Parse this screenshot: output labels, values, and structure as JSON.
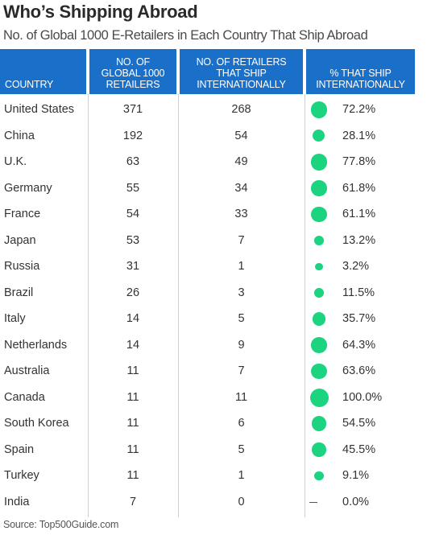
{
  "header": {
    "title": "Who’s Shipping Abroad",
    "subtitle": "No. of Global 1000 E-Retailers in Each Country That Ship Abroad"
  },
  "columns": {
    "country": "COUNTRY",
    "retailers": "NO. OF\nGLOBAL 1000\nRETAILERS",
    "ship": "NO. OF RETAILERS\nTHAT SHIP\nINTERNATIONALLY",
    "pct": "% THAT SHIP\nINTERNATIONALLY"
  },
  "colors": {
    "header_bg": "#1a6fc9",
    "dot": "#1cd47f"
  },
  "source": "Source: Top500Guide.com",
  "chart_data": {
    "type": "table",
    "title": "Who’s Shipping Abroad",
    "subtitle": "No. of Global 1000 E-Retailers in Each Country That Ship Abroad",
    "rows": [
      {
        "country": "United States",
        "retailers": "371",
        "ship": "268",
        "pct": "72.2%",
        "pct_value": 72.2
      },
      {
        "country": "China",
        "retailers": "192",
        "ship": "54",
        "pct": "28.1%",
        "pct_value": 28.1
      },
      {
        "country": "U.K.",
        "retailers": "63",
        "ship": "49",
        "pct": "77.8%",
        "pct_value": 77.8
      },
      {
        "country": "Germany",
        "retailers": "55",
        "ship": "34",
        "pct": "61.8%",
        "pct_value": 61.8
      },
      {
        "country": "France",
        "retailers": "54",
        "ship": "33",
        "pct": "61.1%",
        "pct_value": 61.1
      },
      {
        "country": "Japan",
        "retailers": "53",
        "ship": "7",
        "pct": "13.2%",
        "pct_value": 13.2
      },
      {
        "country": "Russia",
        "retailers": "31",
        "ship": "1",
        "pct": "3.2%",
        "pct_value": 3.2
      },
      {
        "country": "Brazil",
        "retailers": "26",
        "ship": "3",
        "pct": "11.5%",
        "pct_value": 11.5
      },
      {
        "country": "Italy",
        "retailers": "14",
        "ship": "5",
        "pct": "35.7%",
        "pct_value": 35.7
      },
      {
        "country": "Netherlands",
        "retailers": "14",
        "ship": "9",
        "pct": "64.3%",
        "pct_value": 64.3
      },
      {
        "country": "Australia",
        "retailers": "11",
        "ship": "7",
        "pct": "63.6%",
        "pct_value": 63.6
      },
      {
        "country": "Canada",
        "retailers": "11",
        "ship": "11",
        "pct": "100.0%",
        "pct_value": 100.0
      },
      {
        "country": "South Korea",
        "retailers": "11",
        "ship": "6",
        "pct": "54.5%",
        "pct_value": 54.5
      },
      {
        "country": "Spain",
        "retailers": "11",
        "ship": "5",
        "pct": "45.5%",
        "pct_value": 45.5
      },
      {
        "country": "Turkey",
        "retailers": "11",
        "ship": "1",
        "pct": "9.1%",
        "pct_value": 9.1
      },
      {
        "country": "India",
        "retailers": "7",
        "ship": "0",
        "pct": "0.0%",
        "pct_value": 0.0
      }
    ]
  }
}
